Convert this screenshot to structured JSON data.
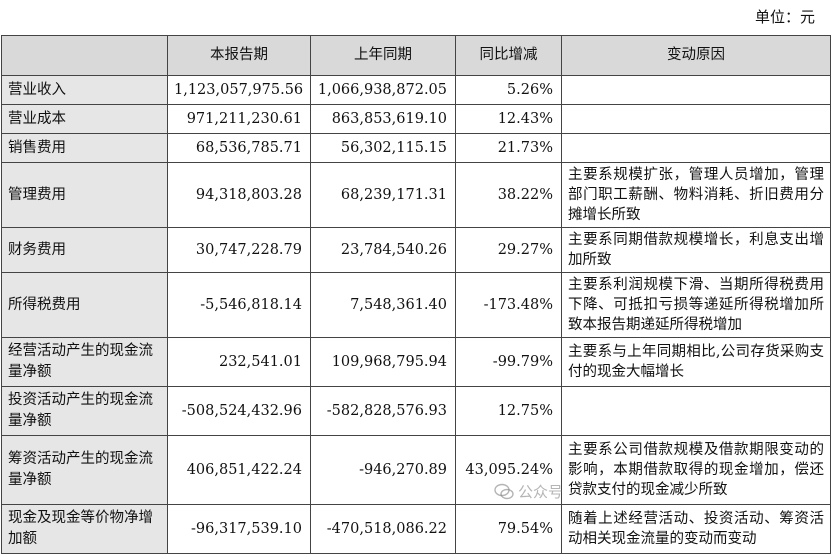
{
  "unit_label": "单位：元",
  "headers": [
    "",
    "本报告期",
    "上年同期",
    "同比增减",
    "变动原因"
  ],
  "rows": [
    {
      "item": "营业收入",
      "current": "1,123,057,975.56",
      "prior": "1,066,938,872.05",
      "change": "5.26%",
      "reason": ""
    },
    {
      "item": "营业成本",
      "current": "971,211,230.61",
      "prior": "863,853,619.10",
      "change": "12.43%",
      "reason": ""
    },
    {
      "item": "销售费用",
      "current": "68,536,785.71",
      "prior": "56,302,115.15",
      "change": "21.73%",
      "reason": ""
    },
    {
      "item": "管理费用",
      "current": "94,318,803.28",
      "prior": "68,239,171.31",
      "change": "38.22%",
      "reason": "主要系规模扩张，管理人员增加，管理部门职工薪酬、物料消耗、折旧费用分摊增长所致"
    },
    {
      "item": "财务费用",
      "current": "30,747,228.79",
      "prior": "23,784,540.26",
      "change": "29.27%",
      "reason": "主要系同期借款规模增长，利息支出增加所致"
    },
    {
      "item": "所得税费用",
      "current": "-5,546,818.14",
      "prior": "7,548,361.40",
      "change": "-173.48%",
      "reason": "主要系利润规模下滑、当期所得税费用下降、可抵扣亏损等递延所得税增加所致本报告期递延所得税增加"
    },
    {
      "item": "经营活动产生的现金流量净额",
      "current": "232,541.01",
      "prior": "109,968,795.94",
      "change": "-99.79%",
      "reason": "主要系与上年同期相比,公司存货采购支付的现金大幅增长"
    },
    {
      "item": "投资活动产生的现金流量净额",
      "current": "-508,524,432.96",
      "prior": "-582,828,576.93",
      "change": "12.75%",
      "reason": ""
    },
    {
      "item": "筹资活动产生的现金流量净额",
      "current": "406,851,422.24",
      "prior": "-946,270.89",
      "change": "43,095.24%",
      "reason": "主要系公司借款规模及借款期限变动的影响，本期借款取得的现金增加，偿还贷款支付的现金减少所致"
    },
    {
      "item": "现金及现金等价物净增加额",
      "current": "-96,317,539.10",
      "prior": "-470,518,086.22",
      "change": "79.54%",
      "reason": "随着上述经营活动、投资活动、筹资活动相关现金流量的变动而变动"
    }
  ],
  "watermark_text": "公众号"
}
